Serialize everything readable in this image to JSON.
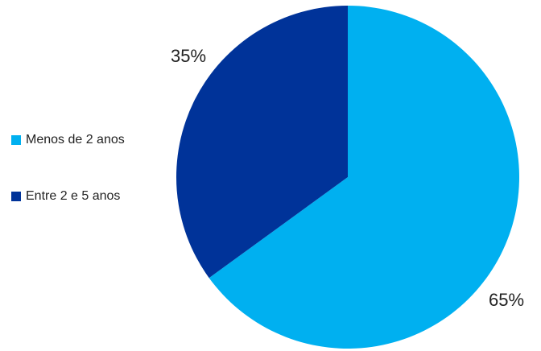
{
  "chart_data": {
    "type": "pie",
    "categories": [
      "Menos de 2 anos",
      "Entre 2 e 5 anos"
    ],
    "values": [
      65,
      35
    ],
    "labels": [
      "65%",
      "35%"
    ],
    "colors": [
      "#00B0F0",
      "#003399"
    ],
    "legend_position": "left"
  }
}
